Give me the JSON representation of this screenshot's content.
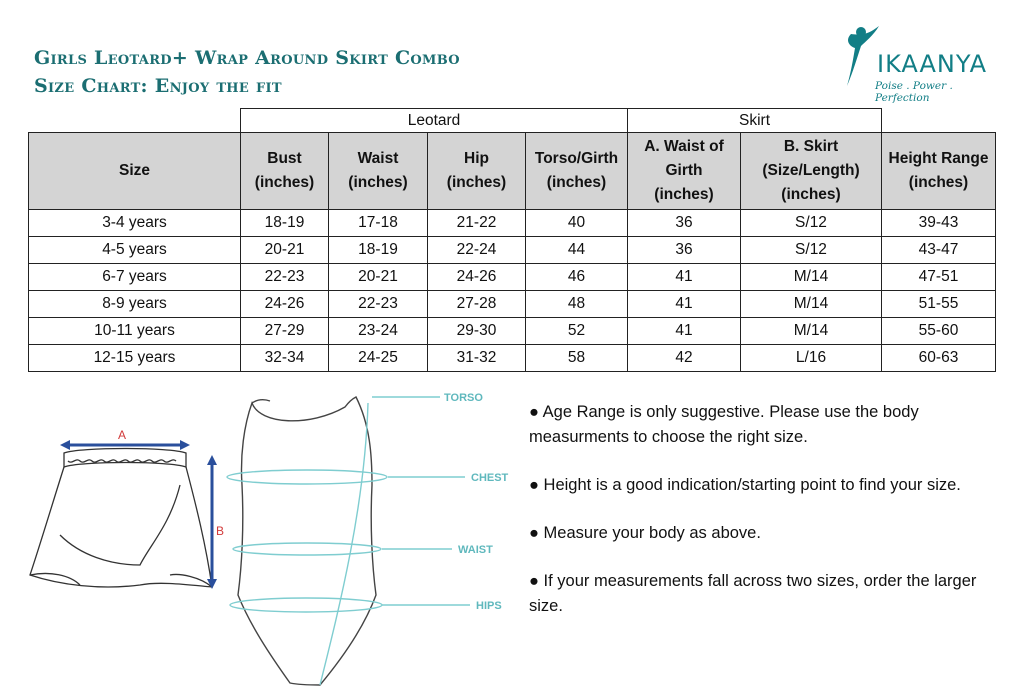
{
  "title": {
    "line1": "Girls Leotard+ Wrap Around Skirt Combo",
    "line2": "Size Chart: Enjoy the fit"
  },
  "logo": {
    "brand": "IKAANYA",
    "tagline": "Poise . Power . Perfection"
  },
  "table": {
    "group_headers": {
      "leotard": "Leotard",
      "skirt": "Skirt"
    },
    "columns": [
      [
        "Size"
      ],
      [
        "Bust",
        "(inches)"
      ],
      [
        "Waist",
        "(inches)"
      ],
      [
        "Hip",
        "(inches)"
      ],
      [
        "Torso/Girth",
        "(inches)"
      ],
      [
        "A. Waist of",
        "Girth",
        "(inches)"
      ],
      [
        "B. Skirt",
        "(Size/Length)",
        "(inches)"
      ],
      [
        "Height Range",
        "(inches)"
      ]
    ],
    "rows": [
      [
        "3-4 years",
        "18-19",
        "17-18",
        "21-22",
        "40",
        "36",
        "S/12",
        "39-43"
      ],
      [
        "4-5 years",
        "20-21",
        "18-19",
        "22-24",
        "44",
        "36",
        "S/12",
        "43-47"
      ],
      [
        "6-7 years",
        "22-23",
        "20-21",
        "24-26",
        "46",
        "41",
        "M/14",
        "47-51"
      ],
      [
        "8-9 years",
        "24-26",
        "22-23",
        "27-28",
        "48",
        "41",
        "M/14",
        "51-55"
      ],
      [
        "10-11 years",
        "27-29",
        "23-24",
        "29-30",
        "52",
        "41",
        "M/14",
        "55-60"
      ],
      [
        "12-15 years",
        "32-34",
        "24-25",
        "31-32",
        "58",
        "42",
        "L/16",
        "60-63"
      ]
    ]
  },
  "diagram": {
    "skirt_labels": {
      "a": "A",
      "b": "B"
    },
    "body_labels": {
      "torso": "TORSO",
      "chest": "CHEST",
      "waist": "WAIST",
      "hips": "HIPS"
    }
  },
  "notes": [
    "● Age Range is only suggestive. Please use the body measurments to choose the right size.",
    "● Height is a good indication/starting point to find your size.",
    "● Measure your body as above.",
    "● If your measurements fall across two sizes, order the larger size."
  ],
  "colors": {
    "title": "#1b6e72",
    "header_fill": "#d4d4d4",
    "diagram_line": "#7fcdd0",
    "dimension": "#2a4f9c",
    "label_b": "#d23a3a"
  }
}
